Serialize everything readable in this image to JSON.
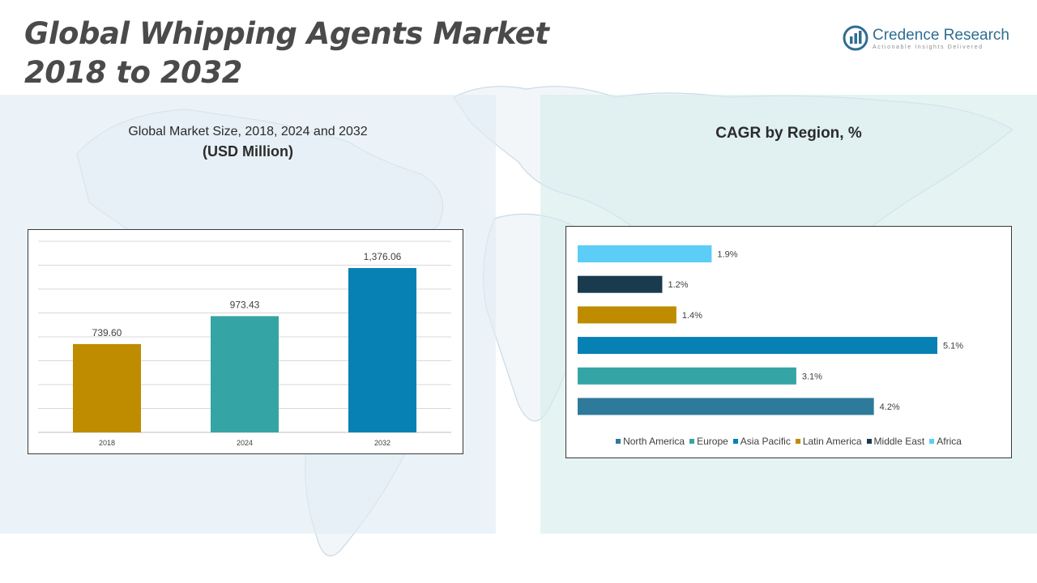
{
  "header": {
    "title_line1": "Global Whipping Agents Market",
    "title_line2": "2018 to 2032"
  },
  "logo": {
    "name": "Credence Research",
    "tagline": "Actionable Insights Delivered",
    "icon": "credence-logo-icon"
  },
  "left_panel": {
    "subtitle": "Global Market Size, 2018, 2024 and 2032",
    "unit": "(USD Million)"
  },
  "right_panel": {
    "title": "CAGR by Region, %"
  },
  "colors": {
    "north_america": "#2e7a9a",
    "europe": "#35a4a4",
    "asia_pacific": "#0780b4",
    "latin_america": "#bf8c00",
    "middle_east": "#1a3a4e",
    "africa": "#5bcdf7"
  },
  "chart_data": [
    {
      "type": "bar",
      "categories": [
        "2018",
        "2024",
        "2032"
      ],
      "values": [
        739.6,
        973.43,
        1376.06
      ],
      "value_labels": [
        "739.60",
        "973.43",
        "1,376.06"
      ],
      "colors": [
        "#bf8c00",
        "#35a4a4",
        "#0780b4"
      ],
      "ylim": [
        0,
        1600
      ],
      "grid": true
    },
    {
      "type": "bar",
      "orientation": "horizontal",
      "categories": [
        "Africa",
        "Middle East",
        "Latin America",
        "Asia Pacific",
        "Europe",
        "North America"
      ],
      "values": [
        1.9,
        1.2,
        1.4,
        5.1,
        3.1,
        4.2
      ],
      "value_labels": [
        "1.9%",
        "1.2%",
        "1.4%",
        "5.1%",
        "3.1%",
        "4.2%"
      ],
      "colors": [
        "#5bcdf7",
        "#1a3a4e",
        "#bf8c00",
        "#0780b4",
        "#35a4a4",
        "#2e7a9a"
      ],
      "xlim": [
        0,
        5.1
      ],
      "legend": {
        "position": "bottom",
        "entries": [
          "North America",
          "Europe",
          "Asia Pacific",
          "Latin America",
          "Middle East",
          "Africa"
        ],
        "colors": [
          "#2e7a9a",
          "#35a4a4",
          "#0780b4",
          "#bf8c00",
          "#1a3a4e",
          "#5bcdf7"
        ]
      }
    }
  ]
}
